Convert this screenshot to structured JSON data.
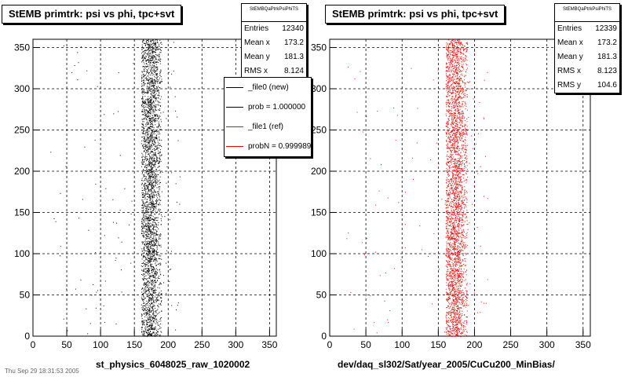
{
  "footer_text": "Thu Sep 29 18:31:53 2005",
  "legend": {
    "entries": [
      {
        "label": "_file0 (new)",
        "color": "#000000"
      },
      {
        "label": "prob = 1.000000",
        "color": "#000000"
      },
      {
        "label": "_file1 (ref)",
        "color": "#ff0000"
      },
      {
        "label": "probN = 0.999989",
        "color": "#ff0000"
      }
    ]
  },
  "panels": [
    {
      "title": "StEMB primtrk: psi vs phi, tpc+svt",
      "xtitle": "st_physics_6048025_raw_1020002",
      "stats": {
        "name": "StEMBQaPtrkPsiPhiTS",
        "rows": [
          {
            "label": "Entries",
            "value": "12340"
          },
          {
            "label": "Mean x",
            "value": "173.2"
          },
          {
            "label": "Mean y",
            "value": "181.3"
          },
          {
            "label": "RMS x",
            "value": "8.124"
          }
        ]
      }
    },
    {
      "title": "StEMB primtrk: psi vs phi, tpc+svt",
      "xtitle": "dev/daq_sl302/Sat/year_2005/CuCu200_MinBias/",
      "stats": {
        "name": "StEMBQaPtrkPsiPhiTS",
        "rows": [
          {
            "label": "Entries",
            "value": "12339"
          },
          {
            "label": "Mean x",
            "value": "173.2"
          },
          {
            "label": "Mean y",
            "value": "181.3"
          },
          {
            "label": "RMS x",
            "value": "8.123"
          },
          {
            "label": "RMS y",
            "value": "104.6"
          }
        ]
      }
    }
  ],
  "chart_data": [
    {
      "type": "scatter",
      "title": "StEMB primtrk: psi vs phi, tpc+svt",
      "xlabel": "st_physics_6048025_raw_1020002",
      "ylabel": "",
      "xlim": [
        0,
        360
      ],
      "ylim": [
        0,
        360
      ],
      "xticks": [
        0,
        50,
        100,
        150,
        200,
        250,
        300,
        350
      ],
      "yticks": [
        0,
        50,
        100,
        150,
        200,
        250,
        300,
        350
      ],
      "grid": true,
      "series": [
        {
          "name": "_file0 (new)",
          "color": "#000000",
          "entries": 12340,
          "mean_x": 173.2,
          "mean_y": 181.3,
          "rms_x": 8.124,
          "band_x": [
            160,
            190
          ]
        }
      ]
    },
    {
      "type": "scatter",
      "title": "StEMB primtrk: psi vs phi, tpc+svt",
      "xlabel": "dev/daq_sl302/Sat/year_2005/CuCu200_MinBias/",
      "ylabel": "",
      "xlim": [
        0,
        360
      ],
      "ylim": [
        0,
        360
      ],
      "xticks": [
        0,
        50,
        100,
        150,
        200,
        250,
        300,
        350
      ],
      "yticks": [
        0,
        50,
        100,
        150,
        200,
        250,
        300,
        350
      ],
      "grid": true,
      "series": [
        {
          "name": "_file1 (ref)",
          "color": "#ff0000",
          "entries": 12339,
          "mean_x": 173.2,
          "mean_y": 181.3,
          "rms_x": 8.123,
          "rms_y": 104.6,
          "band_x": [
            160,
            190
          ]
        }
      ]
    }
  ]
}
